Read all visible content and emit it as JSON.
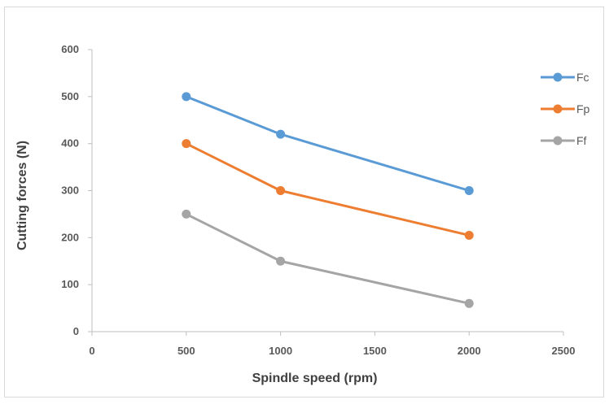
{
  "chart_data": {
    "type": "line",
    "title": "",
    "xlabel": "Spindle speed (rpm)",
    "ylabel": "Cutting forces (N)",
    "xlim": [
      0,
      2500
    ],
    "ylim": [
      0,
      600
    ],
    "x_ticks": [
      "0",
      "500",
      "1000",
      "1500",
      "2000",
      "2500"
    ],
    "y_ticks": [
      "0",
      "100",
      "200",
      "300",
      "400",
      "500",
      "600"
    ],
    "grid": false,
    "legend_position": "right",
    "x": [
      500,
      1000,
      2000
    ],
    "series": [
      {
        "name": "Fc",
        "color": "#5b9bd5",
        "values": [
          500,
          420,
          300
        ]
      },
      {
        "name": "Fp",
        "color": "#ed7d31",
        "values": [
          400,
          300,
          205
        ]
      },
      {
        "name": "Ff",
        "color": "#a5a5a5",
        "values": [
          250,
          150,
          60
        ]
      }
    ]
  }
}
